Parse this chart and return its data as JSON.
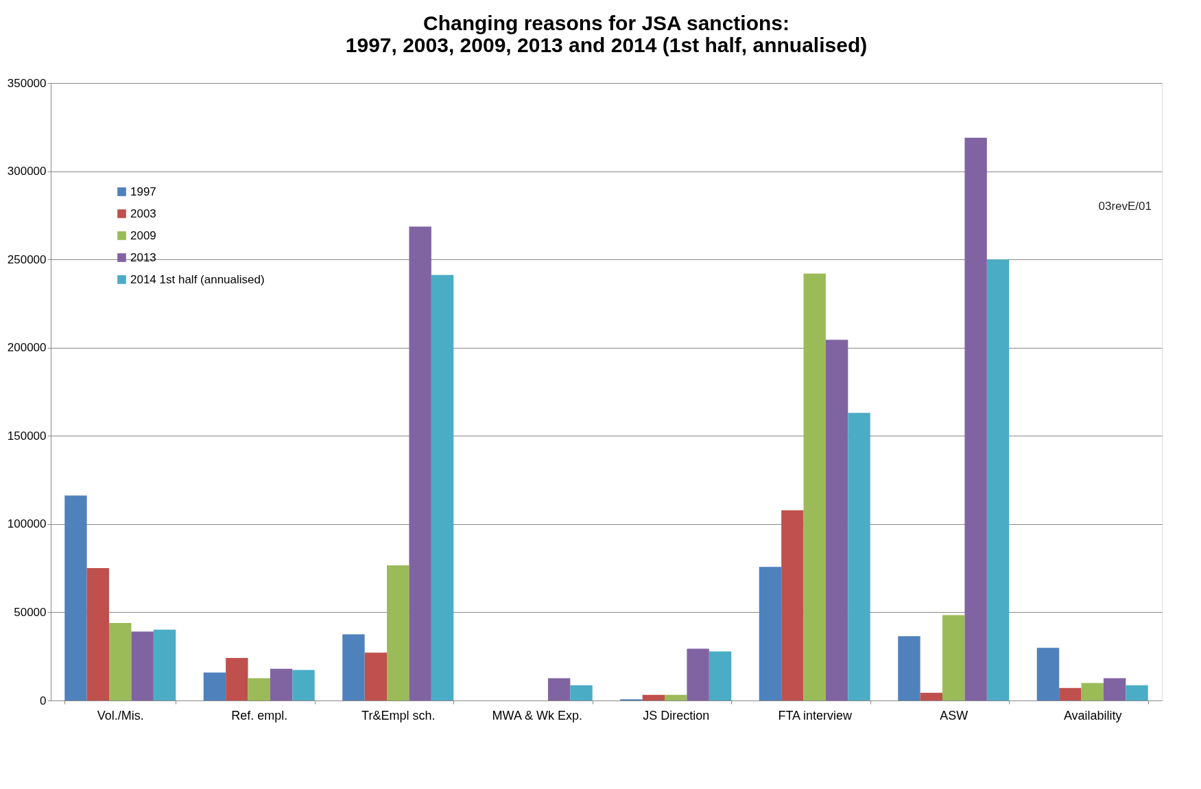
{
  "chart_data": {
    "type": "bar",
    "title": "Changing reasons for JSA sanctions:\n1997, 2003, 2009, 2013 and 2014 (1st half, annualised)",
    "categories": [
      "Vol./Mis.",
      "Ref. empl.",
      "Tr&Empl sch.",
      "MWA & Wk Exp.",
      "JS Direction",
      "FTA interview",
      "ASW",
      "Availability"
    ],
    "series": [
      {
        "name": "1997",
        "color": "#4f81bd",
        "values": [
          116200,
          15800,
          37500,
          0,
          700,
          75700,
          36500,
          29800
        ]
      },
      {
        "name": "2003",
        "color": "#c0504d",
        "values": [
          75100,
          24100,
          27100,
          0,
          3200,
          107800,
          4400,
          7100
        ]
      },
      {
        "name": "2009",
        "color": "#9bbb59",
        "values": [
          43900,
          12600,
          76600,
          0,
          3200,
          242000,
          48400,
          9900
        ]
      },
      {
        "name": "2013",
        "color": "#8064a2",
        "values": [
          39100,
          18000,
          268600,
          12600,
          29400,
          204500,
          319000,
          12600
        ]
      },
      {
        "name": "2014 1st half (annualised)",
        "color": "#4bacc6",
        "values": [
          40200,
          17300,
          241200,
          8700,
          27800,
          163000,
          250000,
          8700
        ]
      }
    ],
    "ylim": [
      0,
      350000
    ],
    "yticks": [
      0,
      50000,
      100000,
      150000,
      200000,
      250000,
      300000,
      350000
    ],
    "grid": "y",
    "legend": "top left",
    "annotations": [
      "03revE/01"
    ]
  }
}
